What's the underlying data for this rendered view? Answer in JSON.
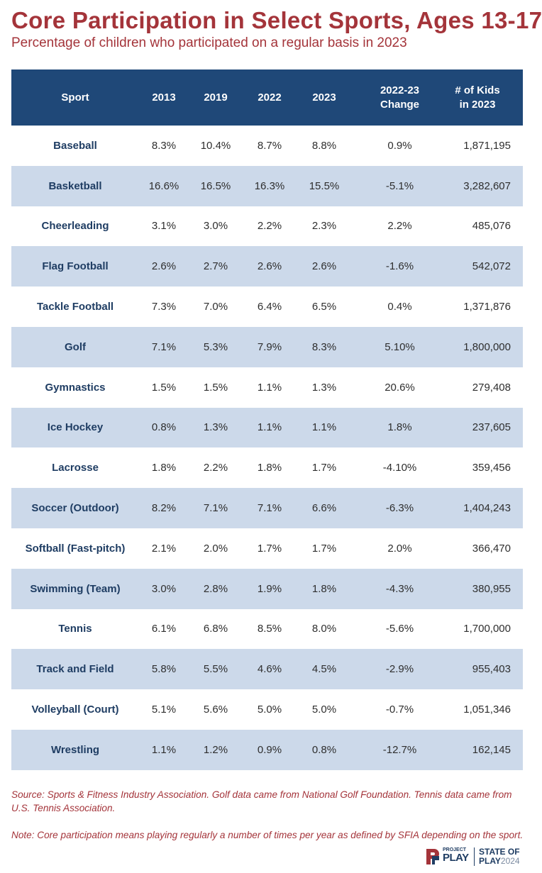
{
  "header": {
    "title": "Core Participation in Select Sports, Ages 13-17",
    "subtitle": "Percentage of children who participated on a regular basis in 2023"
  },
  "chart_data": {
    "type": "table",
    "columns": [
      "Sport",
      "2013",
      "2019",
      "2022",
      "2023",
      "2022-23 Change",
      "# of Kids in 2023"
    ],
    "column_lines": [
      [
        "Sport"
      ],
      [
        "2013"
      ],
      [
        "2019"
      ],
      [
        "2022"
      ],
      [
        "2023"
      ],
      [
        "2022-23",
        "Change"
      ],
      [
        "# of Kids",
        "in 2023"
      ]
    ],
    "rows": [
      [
        "Baseball",
        "8.3%",
        "10.4%",
        "8.7%",
        "8.8%",
        "0.9%",
        "1,871,195"
      ],
      [
        "Basketball",
        "16.6%",
        "16.5%",
        "16.3%",
        "15.5%",
        "-5.1%",
        "3,282,607"
      ],
      [
        "Cheerleading",
        "3.1%",
        "3.0%",
        "2.2%",
        "2.3%",
        "2.2%",
        "485,076"
      ],
      [
        "Flag Football",
        "2.6%",
        "2.7%",
        "2.6%",
        "2.6%",
        "-1.6%",
        "542,072"
      ],
      [
        "Tackle Football",
        "7.3%",
        "7.0%",
        "6.4%",
        "6.5%",
        "0.4%",
        "1,371,876"
      ],
      [
        "Golf",
        "7.1%",
        "5.3%",
        "7.9%",
        "8.3%",
        "5.10%",
        "1,800,000"
      ],
      [
        "Gymnastics",
        "1.5%",
        "1.5%",
        "1.1%",
        "1.3%",
        "20.6%",
        "279,408"
      ],
      [
        "Ice Hockey",
        "0.8%",
        "1.3%",
        "1.1%",
        "1.1%",
        "1.8%",
        "237,605"
      ],
      [
        "Lacrosse",
        "1.8%",
        "2.2%",
        "1.8%",
        "1.7%",
        "-4.10%",
        "359,456"
      ],
      [
        "Soccer (Outdoor)",
        "8.2%",
        "7.1%",
        "7.1%",
        "6.6%",
        "-6.3%",
        "1,404,243"
      ],
      [
        "Softball (Fast-pitch)",
        "2.1%",
        "2.0%",
        "1.7%",
        "1.7%",
        "2.0%",
        "366,470"
      ],
      [
        "Swimming (Team)",
        "3.0%",
        "2.8%",
        "1.9%",
        "1.8%",
        "-4.3%",
        "380,955"
      ],
      [
        "Tennis",
        "6.1%",
        "6.8%",
        "8.5%",
        "8.0%",
        "-5.6%",
        "1,700,000"
      ],
      [
        "Track and Field",
        "5.8%",
        "5.5%",
        "4.6%",
        "4.5%",
        "-2.9%",
        "955,403"
      ],
      [
        "Volleyball (Court)",
        "5.1%",
        "5.6%",
        "5.0%",
        "5.0%",
        "-0.7%",
        "1,051,346"
      ],
      [
        "Wrestling",
        "1.1%",
        "1.2%",
        "0.9%",
        "0.8%",
        "-12.7%",
        "162,145"
      ]
    ]
  },
  "footer": {
    "source": "Source: Sports & Fitness Industry Association. Golf data came from National Golf Foundation. Tennis data came from U.S. Tennis Association.",
    "note": "Note: Core participation means playing regularly a number of times per year as defined by SFIA depending on the sport."
  },
  "logos": {
    "project_play_top": "PROJECT",
    "project_play_main": "PLAY",
    "state_of_play_line1": "STATE OF",
    "state_of_play_line2": "PLAY",
    "state_of_play_year": "2024"
  },
  "colors": {
    "title": "#a4343a",
    "header_bg": "#1f4878",
    "alt_row": "#ccd9ea",
    "sport_text": "#1f3d63"
  }
}
